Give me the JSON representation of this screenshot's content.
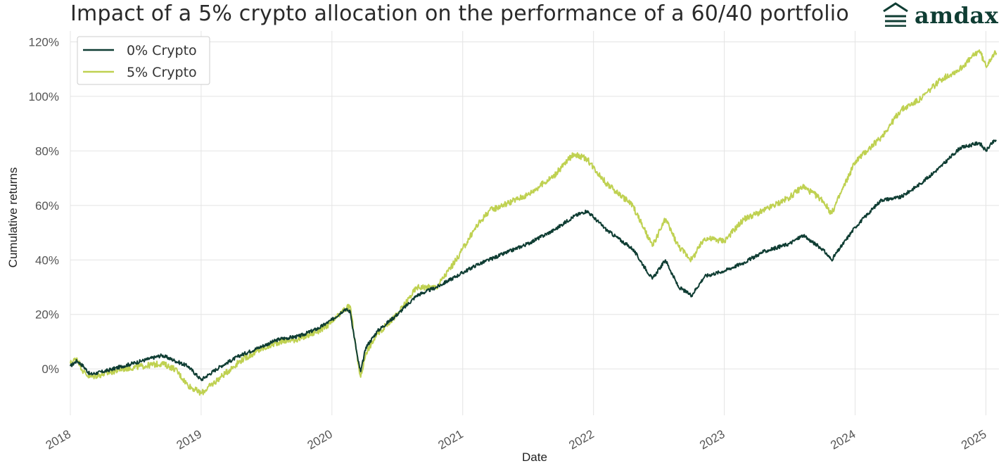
{
  "header": {
    "title": "Impact of a 5% crypto allocation on the performance of a 60/40 portfolio",
    "logo_text": "amdax",
    "logo_icon": "stacked-roof-icon",
    "brand_color": "#0f3d33"
  },
  "chart_data": {
    "type": "line",
    "xlabel": "Date",
    "ylabel": "Cumulative returns",
    "xlim": [
      2018.0,
      2025.1
    ],
    "ylim": [
      -17,
      124
    ],
    "x_ticks": [
      2018,
      2019,
      2020,
      2021,
      2022,
      2023,
      2024,
      2025
    ],
    "x_tick_labels": [
      "2018",
      "2019",
      "2020",
      "2021",
      "2022",
      "2023",
      "2024",
      "2025"
    ],
    "y_ticks": [
      0,
      20,
      40,
      60,
      80,
      100,
      120
    ],
    "y_tick_labels": [
      "0%",
      "20%",
      "40%",
      "60%",
      "80%",
      "100%",
      "120%"
    ],
    "grid": true,
    "legend_position": "top-left",
    "series": [
      {
        "name": "0% Crypto",
        "color": "#0f3d33",
        "points": [
          [
            2018.0,
            1
          ],
          [
            2018.05,
            3
          ],
          [
            2018.1,
            1
          ],
          [
            2018.15,
            -2
          ],
          [
            2018.25,
            -1
          ],
          [
            2018.4,
            1
          ],
          [
            2018.55,
            3
          ],
          [
            2018.7,
            5
          ],
          [
            2018.8,
            3
          ],
          [
            2018.9,
            1
          ],
          [
            2019.0,
            -4
          ],
          [
            2019.15,
            1
          ],
          [
            2019.3,
            5
          ],
          [
            2019.45,
            8
          ],
          [
            2019.6,
            11
          ],
          [
            2019.75,
            12
          ],
          [
            2019.9,
            15
          ],
          [
            2020.0,
            18
          ],
          [
            2020.1,
            22
          ],
          [
            2020.14,
            21
          ],
          [
            2020.2,
            3
          ],
          [
            2020.22,
            -1
          ],
          [
            2020.26,
            8
          ],
          [
            2020.35,
            14
          ],
          [
            2020.5,
            20
          ],
          [
            2020.65,
            27
          ],
          [
            2020.8,
            30
          ],
          [
            2020.95,
            34
          ],
          [
            2021.1,
            38
          ],
          [
            2021.3,
            42
          ],
          [
            2021.5,
            46
          ],
          [
            2021.7,
            51
          ],
          [
            2021.85,
            56
          ],
          [
            2021.95,
            58
          ],
          [
            2022.1,
            51
          ],
          [
            2022.3,
            44
          ],
          [
            2022.45,
            33
          ],
          [
            2022.55,
            40
          ],
          [
            2022.65,
            30
          ],
          [
            2022.75,
            27
          ],
          [
            2022.85,
            34
          ],
          [
            2023.0,
            36
          ],
          [
            2023.15,
            39
          ],
          [
            2023.3,
            43
          ],
          [
            2023.5,
            46
          ],
          [
            2023.6,
            49
          ],
          [
            2023.75,
            44
          ],
          [
            2023.82,
            40
          ],
          [
            2024.0,
            52
          ],
          [
            2024.2,
            62
          ],
          [
            2024.35,
            63
          ],
          [
            2024.5,
            68
          ],
          [
            2024.65,
            74
          ],
          [
            2024.8,
            81
          ],
          [
            2024.95,
            83
          ],
          [
            2025.0,
            80
          ],
          [
            2025.05,
            83
          ],
          [
            2025.08,
            84
          ]
        ]
      },
      {
        "name": "5% Crypto",
        "color": "#bfd151",
        "points": [
          [
            2018.0,
            2
          ],
          [
            2018.05,
            4
          ],
          [
            2018.1,
            -1
          ],
          [
            2018.15,
            -3
          ],
          [
            2018.25,
            -2
          ],
          [
            2018.4,
            0
          ],
          [
            2018.55,
            1
          ],
          [
            2018.7,
            2
          ],
          [
            2018.8,
            0
          ],
          [
            2018.9,
            -6
          ],
          [
            2019.0,
            -9
          ],
          [
            2019.15,
            -3
          ],
          [
            2019.3,
            3
          ],
          [
            2019.45,
            7
          ],
          [
            2019.6,
            10
          ],
          [
            2019.75,
            11
          ],
          [
            2019.9,
            14
          ],
          [
            2020.0,
            17
          ],
          [
            2020.1,
            22
          ],
          [
            2020.14,
            23
          ],
          [
            2020.2,
            2
          ],
          [
            2020.22,
            -3
          ],
          [
            2020.26,
            6
          ],
          [
            2020.35,
            13
          ],
          [
            2020.5,
            20
          ],
          [
            2020.65,
            30
          ],
          [
            2020.8,
            30
          ],
          [
            2020.95,
            40
          ],
          [
            2021.1,
            52
          ],
          [
            2021.2,
            58
          ],
          [
            2021.3,
            60
          ],
          [
            2021.5,
            64
          ],
          [
            2021.7,
            71
          ],
          [
            2021.85,
            79
          ],
          [
            2021.95,
            77
          ],
          [
            2022.1,
            68
          ],
          [
            2022.3,
            60
          ],
          [
            2022.45,
            45
          ],
          [
            2022.55,
            55
          ],
          [
            2022.65,
            45
          ],
          [
            2022.75,
            40
          ],
          [
            2022.85,
            48
          ],
          [
            2023.0,
            47
          ],
          [
            2023.15,
            55
          ],
          [
            2023.3,
            58
          ],
          [
            2023.5,
            63
          ],
          [
            2023.6,
            67
          ],
          [
            2023.75,
            62
          ],
          [
            2023.82,
            57
          ],
          [
            2024.0,
            76
          ],
          [
            2024.2,
            85
          ],
          [
            2024.35,
            95
          ],
          [
            2024.5,
            99
          ],
          [
            2024.65,
            106
          ],
          [
            2024.8,
            110
          ],
          [
            2024.95,
            117
          ],
          [
            2025.0,
            111
          ],
          [
            2025.05,
            115
          ],
          [
            2025.08,
            116
          ]
        ]
      }
    ]
  }
}
